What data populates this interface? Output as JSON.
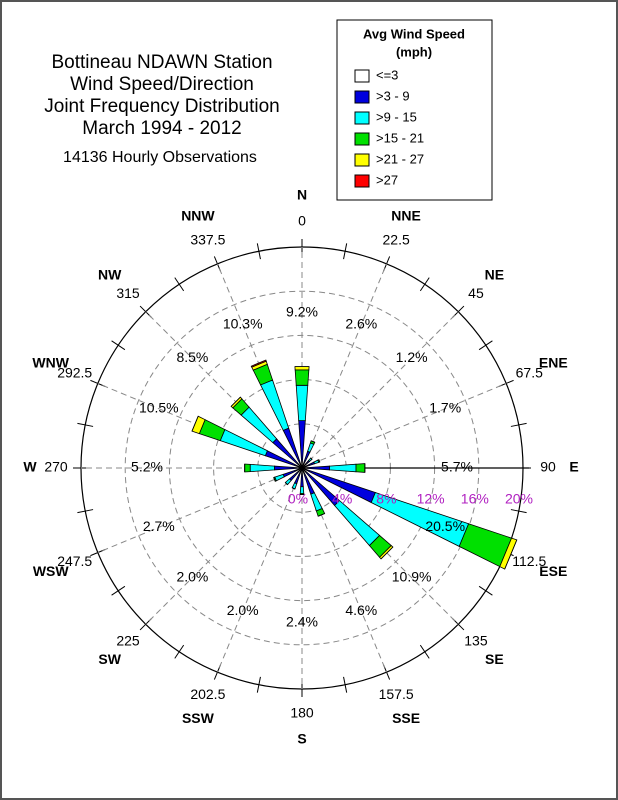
{
  "chart_data": {
    "type": "windrose",
    "title_lines": [
      "Bottineau NDAWN Station",
      "Wind Speed/Direction",
      "Joint Frequency Distribution",
      "March 1994 - 2012"
    ],
    "subtitle": "14136 Hourly Observations",
    "legend_title_lines": [
      "Avg Wind Speed",
      "(mph)"
    ],
    "categories": [
      "N",
      "NNE",
      "NE",
      "ENE",
      "E",
      "ESE",
      "SE",
      "SSE",
      "S",
      "SSW",
      "SW",
      "WSW",
      "W",
      "WNW",
      "NW",
      "NNW"
    ],
    "degrees": [
      0,
      22.5,
      45,
      67.5,
      90,
      112.5,
      135,
      157.5,
      180,
      202.5,
      225,
      247.5,
      270,
      292.5,
      315,
      337.5
    ],
    "totals": [
      9.2,
      2.6,
      1.2,
      1.7,
      5.7,
      20.5,
      10.9,
      4.6,
      2.4,
      2.0,
      2.0,
      2.7,
      5.2,
      10.5,
      8.5,
      10.3
    ],
    "total_labels": [
      "9.2%",
      "2.6%",
      "1.2%",
      "1.7%",
      "5.7%",
      "20.5%",
      "10.9%",
      "4.6%",
      "2.4%",
      "2.0%",
      "2.0%",
      "2.7%",
      "5.2%",
      "10.5%",
      "8.5%",
      "10.3%"
    ],
    "series": [
      {
        "name": "<=3",
        "color": "#ffffff",
        "values": [
          0,
          0,
          0,
          0,
          0,
          0,
          0,
          0,
          0,
          0,
          0,
          0,
          0,
          0,
          0,
          0
        ]
      },
      {
        "name": ">3 - 9",
        "color": "#0000dd",
        "values": [
          4.3,
          1.6,
          0.9,
          1.2,
          2.5,
          7.0,
          4.5,
          2.5,
          1.7,
          1.5,
          1.5,
          1.8,
          2.5,
          3.5,
          3.5,
          3.8
        ]
      },
      {
        "name": ">9 - 15",
        "color": "#00ffff",
        "values": [
          3.2,
          0.8,
          0.3,
          0.4,
          2.4,
          8.9,
          4.8,
          1.6,
          0.6,
          0.5,
          0.5,
          0.8,
          2.2,
          4.3,
          3.8,
          4.6
        ]
      },
      {
        "name": ">15 - 21",
        "color": "#00e000",
        "values": [
          1.4,
          0.2,
          0,
          0.1,
          0.8,
          4.1,
          1.4,
          0.5,
          0.1,
          0,
          0,
          0.1,
          0.5,
          2.0,
          1.0,
          1.5
        ]
      },
      {
        "name": ">21 - 27",
        "color": "#ffff00",
        "values": [
          0.3,
          0,
          0,
          0,
          0,
          0.5,
          0.2,
          0,
          0,
          0,
          0,
          0,
          0,
          0.7,
          0.2,
          0.3
        ]
      },
      {
        "name": ">27",
        "color": "#ff0000",
        "values": [
          0,
          0,
          0,
          0,
          0,
          0,
          0,
          0,
          0,
          0,
          0,
          0,
          0,
          0,
          0,
          0.1
        ]
      }
    ],
    "rlim": [
      0,
      20
    ],
    "rticks": [
      {
        "value": 0,
        "label": "0%"
      },
      {
        "value": 4,
        "label": "4%"
      },
      {
        "value": 8,
        "label": "8%"
      },
      {
        "value": 12,
        "label": "12%"
      },
      {
        "value": 16,
        "label": "16%"
      },
      {
        "value": 20,
        "label": "20%"
      }
    ],
    "rtick_color": "#b020c0"
  }
}
